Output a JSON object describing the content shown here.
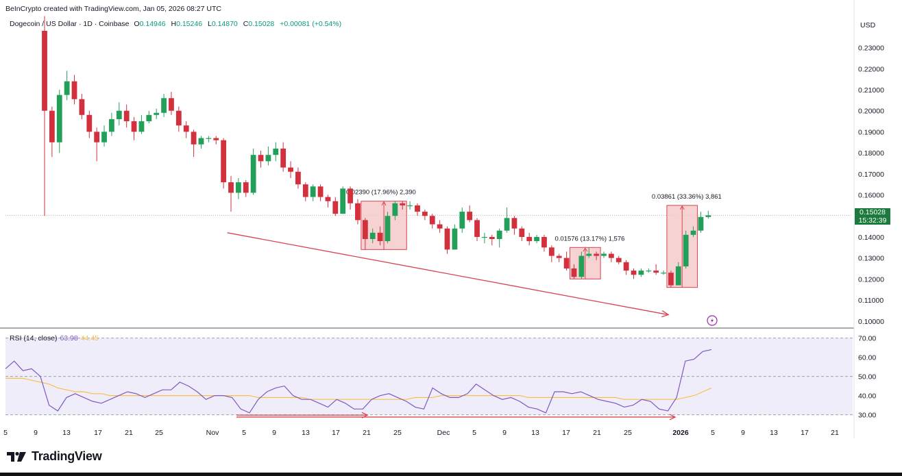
{
  "header": {
    "credit": "BeInCrypto created with TradingView.com, Jan 05, 2026 08:27 UTC",
    "symbol": "Dogecoin / US Dollar · 1D · Coinbase",
    "ohlc": {
      "o_label": "O",
      "o": "0.14946",
      "h_label": "H",
      "h": "0.15246",
      "l_label": "L",
      "l": "0.14870",
      "c_label": "C",
      "c": "0.15028",
      "change": "+0.00081 (+0.54%)"
    },
    "currency": "USD"
  },
  "price_tag": {
    "price": "0.15028",
    "countdown": "15:32:39"
  },
  "rsi_legend": {
    "label": "RSI (14, close)",
    "rsi": "63.98",
    "ma": "44.45"
  },
  "brand": {
    "name": "TradingView"
  },
  "colors": {
    "up": "#22a05a",
    "down": "#d3303e",
    "rsi_line": "#7e57c2",
    "rsi_ma": "#f5c04a",
    "rsi_band": "#f0edfb",
    "measure_box": "#f4c7c7",
    "arrow": "#d9434e",
    "grid_dotted": "#b0b3bc"
  },
  "chart_data": [
    {
      "type": "candlestick",
      "title": "Dogecoin / US Dollar · 1D · Coinbase",
      "x_tick_labels": [
        "5",
        "9",
        "13",
        "17",
        "21",
        "25",
        "Nov",
        "5",
        "9",
        "13",
        "17",
        "21",
        "25",
        "Dec",
        "5",
        "9",
        "13",
        "17",
        "21",
        "25",
        "2026",
        "5",
        "9",
        "13",
        "17",
        "21"
      ],
      "y_ticks": [
        "0.23000",
        "0.22000",
        "0.21000",
        "0.20000",
        "0.19000",
        "0.18000",
        "0.17000",
        "0.16000",
        "0.15000",
        "0.14000",
        "0.13000",
        "0.12000",
        "0.11000",
        "0.10000"
      ],
      "ylim": [
        0.097,
        0.238
      ],
      "last_price": 0.15028,
      "candles": [
        {
          "o": 0.238,
          "c": 0.2,
          "h": 0.245,
          "l": 0.15
        },
        {
          "o": 0.2,
          "c": 0.185,
          "h": 0.202,
          "l": 0.178
        },
        {
          "o": 0.185,
          "c": 0.2075,
          "h": 0.21,
          "l": 0.18
        },
        {
          "o": 0.2075,
          "c": 0.214,
          "h": 0.219,
          "l": 0.205
        },
        {
          "o": 0.214,
          "c": 0.2055,
          "h": 0.217,
          "l": 0.203
        },
        {
          "o": 0.2055,
          "c": 0.198,
          "h": 0.208,
          "l": 0.196
        },
        {
          "o": 0.198,
          "c": 0.19,
          "h": 0.2,
          "l": 0.187
        },
        {
          "o": 0.19,
          "c": 0.185,
          "h": 0.192,
          "l": 0.176
        },
        {
          "o": 0.185,
          "c": 0.19,
          "h": 0.193,
          "l": 0.183
        },
        {
          "o": 0.19,
          "c": 0.196,
          "h": 0.199,
          "l": 0.188
        },
        {
          "o": 0.196,
          "c": 0.2,
          "h": 0.204,
          "l": 0.193
        },
        {
          "o": 0.2,
          "c": 0.195,
          "h": 0.203,
          "l": 0.192
        },
        {
          "o": 0.195,
          "c": 0.19,
          "h": 0.197,
          "l": 0.186
        },
        {
          "o": 0.19,
          "c": 0.195,
          "h": 0.198,
          "l": 0.189
        },
        {
          "o": 0.195,
          "c": 0.198,
          "h": 0.2,
          "l": 0.194
        },
        {
          "o": 0.198,
          "c": 0.199,
          "h": 0.201,
          "l": 0.196
        },
        {
          "o": 0.199,
          "c": 0.206,
          "h": 0.208,
          "l": 0.197
        },
        {
          "o": 0.206,
          "c": 0.2,
          "h": 0.209,
          "l": 0.198
        },
        {
          "o": 0.2,
          "c": 0.193,
          "h": 0.202,
          "l": 0.19
        },
        {
          "o": 0.193,
          "c": 0.19,
          "h": 0.195,
          "l": 0.187
        },
        {
          "o": 0.19,
          "c": 0.184,
          "h": 0.191,
          "l": 0.178
        },
        {
          "o": 0.184,
          "c": 0.187,
          "h": 0.188,
          "l": 0.182
        },
        {
          "o": 0.187,
          "c": 0.187,
          "h": 0.188,
          "l": 0.185
        },
        {
          "o": 0.187,
          "c": 0.186,
          "h": 0.188,
          "l": 0.184
        },
        {
          "o": 0.186,
          "c": 0.166,
          "h": 0.187,
          "l": 0.163
        },
        {
          "o": 0.166,
          "c": 0.161,
          "h": 0.169,
          "l": 0.152
        },
        {
          "o": 0.161,
          "c": 0.166,
          "h": 0.168,
          "l": 0.158
        },
        {
          "o": 0.166,
          "c": 0.161,
          "h": 0.167,
          "l": 0.159
        },
        {
          "o": 0.161,
          "c": 0.179,
          "h": 0.182,
          "l": 0.16
        },
        {
          "o": 0.179,
          "c": 0.176,
          "h": 0.181,
          "l": 0.173
        },
        {
          "o": 0.176,
          "c": 0.179,
          "h": 0.183,
          "l": 0.174
        },
        {
          "o": 0.179,
          "c": 0.182,
          "h": 0.185,
          "l": 0.176
        },
        {
          "o": 0.182,
          "c": 0.173,
          "h": 0.185,
          "l": 0.171
        },
        {
          "o": 0.173,
          "c": 0.171,
          "h": 0.176,
          "l": 0.168
        },
        {
          "o": 0.171,
          "c": 0.165,
          "h": 0.173,
          "l": 0.163
        },
        {
          "o": 0.165,
          "c": 0.159,
          "h": 0.166,
          "l": 0.157
        },
        {
          "o": 0.159,
          "c": 0.164,
          "h": 0.165,
          "l": 0.157
        },
        {
          "o": 0.164,
          "c": 0.159,
          "h": 0.165,
          "l": 0.157
        },
        {
          "o": 0.159,
          "c": 0.157,
          "h": 0.16,
          "l": 0.154
        },
        {
          "o": 0.157,
          "c": 0.151,
          "h": 0.159,
          "l": 0.15
        },
        {
          "o": 0.151,
          "c": 0.163,
          "h": 0.164,
          "l": 0.151
        },
        {
          "o": 0.163,
          "c": 0.156,
          "h": 0.164,
          "l": 0.153
        },
        {
          "o": 0.156,
          "c": 0.148,
          "h": 0.158,
          "l": 0.146
        },
        {
          "o": 0.148,
          "c": 0.139,
          "h": 0.149,
          "l": 0.134
        },
        {
          "o": 0.139,
          "c": 0.142,
          "h": 0.144,
          "l": 0.137
        },
        {
          "o": 0.142,
          "c": 0.138,
          "h": 0.145,
          "l": 0.136
        },
        {
          "o": 0.138,
          "c": 0.15,
          "h": 0.152,
          "l": 0.137
        },
        {
          "o": 0.15,
          "c": 0.156,
          "h": 0.157,
          "l": 0.148
        },
        {
          "o": 0.156,
          "c": 0.155,
          "h": 0.157,
          "l": 0.153
        },
        {
          "o": 0.155,
          "c": 0.155,
          "h": 0.157,
          "l": 0.153
        },
        {
          "o": 0.155,
          "c": 0.152,
          "h": 0.156,
          "l": 0.15
        },
        {
          "o": 0.152,
          "c": 0.15,
          "h": 0.153,
          "l": 0.148
        },
        {
          "o": 0.15,
          "c": 0.146,
          "h": 0.151,
          "l": 0.144
        },
        {
          "o": 0.146,
          "c": 0.144,
          "h": 0.148,
          "l": 0.142
        },
        {
          "o": 0.144,
          "c": 0.134,
          "h": 0.145,
          "l": 0.132
        },
        {
          "o": 0.134,
          "c": 0.144,
          "h": 0.146,
          "l": 0.134
        },
        {
          "o": 0.144,
          "c": 0.152,
          "h": 0.154,
          "l": 0.142
        },
        {
          "o": 0.152,
          "c": 0.148,
          "h": 0.155,
          "l": 0.147
        },
        {
          "o": 0.148,
          "c": 0.14,
          "h": 0.149,
          "l": 0.138
        },
        {
          "o": 0.14,
          "c": 0.14,
          "h": 0.142,
          "l": 0.137
        },
        {
          "o": 0.14,
          "c": 0.139,
          "h": 0.141,
          "l": 0.136
        },
        {
          "o": 0.139,
          "c": 0.143,
          "h": 0.144,
          "l": 0.135
        },
        {
          "o": 0.143,
          "c": 0.149,
          "h": 0.154,
          "l": 0.142
        },
        {
          "o": 0.149,
          "c": 0.144,
          "h": 0.15,
          "l": 0.141
        },
        {
          "o": 0.144,
          "c": 0.14,
          "h": 0.145,
          "l": 0.138
        },
        {
          "o": 0.14,
          "c": 0.138,
          "h": 0.142,
          "l": 0.136
        },
        {
          "o": 0.138,
          "c": 0.14,
          "h": 0.141,
          "l": 0.137
        },
        {
          "o": 0.14,
          "c": 0.135,
          "h": 0.141,
          "l": 0.133
        },
        {
          "o": 0.135,
          "c": 0.131,
          "h": 0.136,
          "l": 0.128
        },
        {
          "o": 0.131,
          "c": 0.13,
          "h": 0.132,
          "l": 0.128
        },
        {
          "o": 0.13,
          "c": 0.125,
          "h": 0.133,
          "l": 0.124
        },
        {
          "o": 0.125,
          "c": 0.121,
          "h": 0.127,
          "l": 0.12
        },
        {
          "o": 0.121,
          "c": 0.131,
          "h": 0.133,
          "l": 0.12
        },
        {
          "o": 0.131,
          "c": 0.132,
          "h": 0.135,
          "l": 0.13
        },
        {
          "o": 0.132,
          "c": 0.131,
          "h": 0.133,
          "l": 0.129
        },
        {
          "o": 0.131,
          "c": 0.132,
          "h": 0.133,
          "l": 0.13
        },
        {
          "o": 0.132,
          "c": 0.13,
          "h": 0.133,
          "l": 0.128
        },
        {
          "o": 0.13,
          "c": 0.128,
          "h": 0.131,
          "l": 0.127
        },
        {
          "o": 0.128,
          "c": 0.124,
          "h": 0.129,
          "l": 0.122
        },
        {
          "o": 0.124,
          "c": 0.122,
          "h": 0.125,
          "l": 0.12
        },
        {
          "o": 0.122,
          "c": 0.124,
          "h": 0.125,
          "l": 0.121
        },
        {
          "o": 0.124,
          "c": 0.124,
          "h": 0.125,
          "l": 0.123
        },
        {
          "o": 0.124,
          "c": 0.123,
          "h": 0.127,
          "l": 0.122
        },
        {
          "o": 0.123,
          "c": 0.123,
          "h": 0.124,
          "l": 0.122
        },
        {
          "o": 0.123,
          "c": 0.117,
          "h": 0.124,
          "l": 0.116
        },
        {
          "o": 0.117,
          "c": 0.126,
          "h": 0.128,
          "l": 0.117
        },
        {
          "o": 0.126,
          "c": 0.141,
          "h": 0.143,
          "l": 0.125
        },
        {
          "o": 0.141,
          "c": 0.143,
          "h": 0.145,
          "l": 0.14
        },
        {
          "o": 0.143,
          "c": 0.1495,
          "h": 0.152,
          "l": 0.142
        },
        {
          "o": 0.14946,
          "c": 0.15028,
          "h": 0.15246,
          "l": 0.1487
        }
      ],
      "measurements": [
        {
          "label": "0.02390 (17.96%) 2,390",
          "from_index": 43,
          "to_index": 48,
          "low": 0.134,
          "high": 0.157
        },
        {
          "label": "0.01576 (13.17%) 1,576",
          "from_index": 71,
          "to_index": 74,
          "low": 0.12,
          "high": 0.135
        },
        {
          "label": "0.03861 (33.36%) 3,861",
          "from_index": 84,
          "to_index": 87,
          "low": 0.116,
          "high": 0.155
        }
      ],
      "trendline": {
        "from_index": 28,
        "from_value": 0.142,
        "to_index": 82,
        "to_value": 0.103
      }
    },
    {
      "type": "line",
      "title": "RSI (14, close)",
      "y_ticks": [
        "70.00",
        "60.00",
        "50.00",
        "40.00",
        "30.00"
      ],
      "ylim": [
        27,
        72
      ],
      "band": [
        30,
        70
      ],
      "series": [
        {
          "name": "RSI",
          "values": [
            54,
            58,
            53,
            54,
            50,
            35,
            32,
            39,
            41,
            39,
            37,
            36,
            38,
            40,
            42,
            41,
            39,
            41,
            43,
            43,
            47,
            45,
            42,
            38,
            40,
            40,
            39,
            33,
            31,
            38,
            42,
            44,
            45,
            40,
            38,
            38,
            36,
            34,
            38,
            36,
            33,
            33,
            38,
            40,
            41,
            39,
            37,
            34,
            33,
            44,
            41,
            39,
            39,
            41,
            46,
            43,
            40,
            38,
            39,
            37,
            34,
            33,
            31,
            42,
            42,
            41,
            42,
            40,
            38,
            37,
            36,
            34,
            35,
            38,
            37,
            33,
            32,
            39,
            58,
            59,
            63,
            64
          ]
        },
        {
          "name": "MA",
          "values": [
            49,
            49,
            49,
            48,
            47,
            46,
            44,
            43,
            42,
            42,
            41,
            41,
            40,
            40,
            40,
            40,
            40,
            40,
            40,
            40,
            40,
            40,
            40,
            40,
            40,
            40,
            40,
            40,
            40,
            39,
            39,
            39,
            39,
            39,
            39,
            38,
            38,
            38,
            38,
            38,
            38,
            38,
            38,
            38,
            38,
            38,
            38,
            39,
            39,
            39,
            40,
            40,
            40,
            40,
            40,
            40,
            40,
            40,
            40,
            40,
            39,
            39,
            39,
            39,
            39,
            39,
            39,
            39,
            39,
            39,
            39,
            38,
            38,
            38,
            38,
            38,
            38,
            38,
            39,
            40,
            42,
            44
          ]
        }
      ],
      "arrows": [
        {
          "from_index": 38,
          "from_value": 29.8,
          "to_index": 60,
          "to_value": 29.8
        },
        {
          "from_index": 38,
          "from_value": 28.8,
          "to_index": 103,
          "to_value": 28.8
        }
      ]
    }
  ]
}
